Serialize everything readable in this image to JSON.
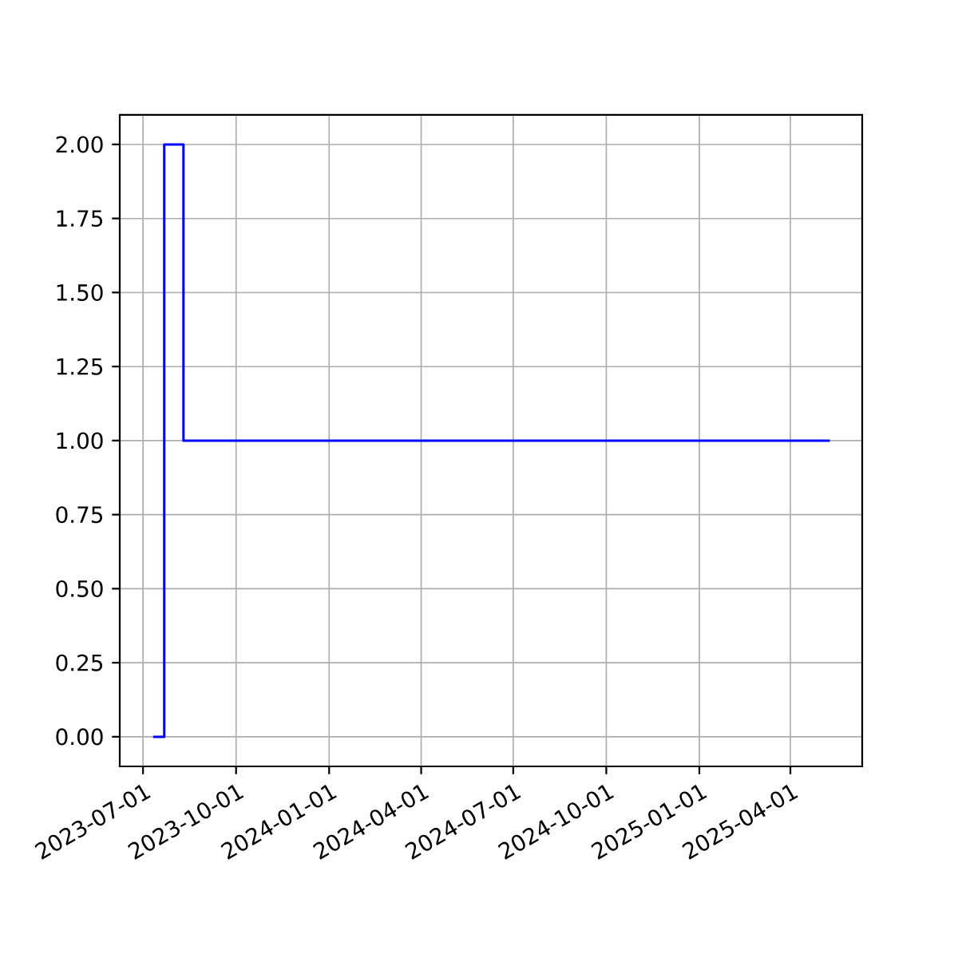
{
  "chart_data": {
    "type": "step",
    "x": [
      "2023-07-11",
      "2023-07-22",
      "2023-08-10",
      "2025-05-10"
    ],
    "values": [
      0,
      2,
      1,
      1
    ],
    "color": "#0000ff",
    "xlim": [
      "2023-06-08",
      "2025-06-11"
    ],
    "xticks": [
      "2023-07-01",
      "2023-10-01",
      "2024-01-01",
      "2024-04-01",
      "2024-07-01",
      "2024-10-01",
      "2025-01-01",
      "2025-04-01"
    ],
    "ylim": [
      -0.1,
      2.1
    ],
    "yticks": [
      {
        "value": 0,
        "label": "0.00"
      },
      {
        "value": 0.25,
        "label": "0.25"
      },
      {
        "value": 0.5,
        "label": "0.50"
      },
      {
        "value": 0.75,
        "label": "0.75"
      },
      {
        "value": 1,
        "label": "1.00"
      },
      {
        "value": 1.25,
        "label": "1.25"
      },
      {
        "value": 1.5,
        "label": "1.50"
      },
      {
        "value": 1.75,
        "label": "1.75"
      },
      {
        "value": 2,
        "label": "2.00"
      }
    ],
    "grid": true
  }
}
